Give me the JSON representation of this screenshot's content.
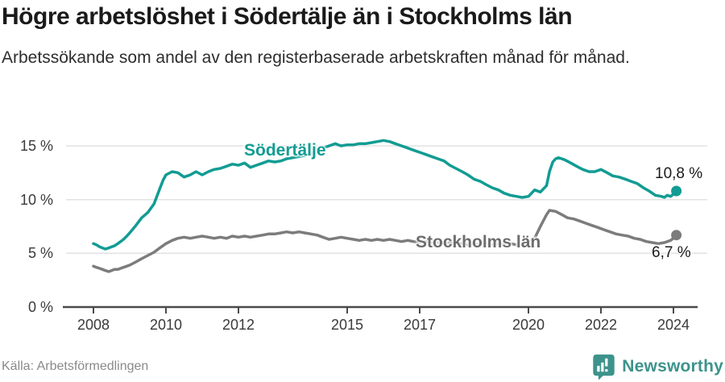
{
  "title": "Högre arbetslöshet i Södertälje än i Stockholms län",
  "subtitle": "Arbetssökande som andel av den registerbaserade arbetskraften månad för månad.",
  "footer": {
    "source": "Källa: Arbetsförmedlingen",
    "brand": "Newsworthy",
    "logo_icon": "newsworthy-pin-barchart-icon"
  },
  "colors": {
    "background": "#ffffff",
    "title_text": "#1a1a1a",
    "subtitle_text": "#2e2e2e",
    "axis_text": "#3a3a3a",
    "grid_line": "#e2e2e2",
    "axis_line": "#4a4a4a",
    "series_sodertalje": "#129c93",
    "series_stockholms_lan": "#7c7c7c",
    "stockholms_label_text": "#6d6d6d",
    "end_label_text": "#1a1a1a",
    "source_text": "#8a8a8a",
    "brand_teal": "#3d938b"
  },
  "chart_data": {
    "type": "line",
    "title": "Högre arbetslöshet i Södertälje än i Stockholms län",
    "subtitle": "Arbetssökande som andel av den registerbaserade arbetskraften månad för månad.",
    "unit": "%",
    "grid": "horizontal",
    "legend_position": "inline-labels",
    "x_axis": {
      "ticks": [
        2008,
        2010,
        2012,
        2015,
        2017,
        2020,
        2022,
        2024
      ],
      "tick_labels": [
        "2008",
        "2010",
        "2012",
        "2015",
        "2017",
        "2020",
        "2022",
        "2024"
      ],
      "range": [
        2008.0,
        2024.7
      ]
    },
    "y_axis": {
      "ticks": [
        0,
        5,
        10,
        15
      ],
      "tick_labels": [
        "0 %",
        "5 %",
        "10 %",
        "15 %"
      ],
      "range": [
        0,
        16.9
      ]
    },
    "series": [
      {
        "name": "Södertälje",
        "color": "#129c93",
        "end_value": 10.8,
        "end_label": "10,8 %",
        "points": [
          [
            2008.0,
            5.9
          ],
          [
            2008.08,
            5.8
          ],
          [
            2008.17,
            5.6
          ],
          [
            2008.25,
            5.5
          ],
          [
            2008.33,
            5.4
          ],
          [
            2008.42,
            5.5
          ],
          [
            2008.5,
            5.6
          ],
          [
            2008.58,
            5.7
          ],
          [
            2008.67,
            5.9
          ],
          [
            2008.75,
            6.1
          ],
          [
            2008.83,
            6.3
          ],
          [
            2008.92,
            6.6
          ],
          [
            2009.0,
            6.9
          ],
          [
            2009.17,
            7.6
          ],
          [
            2009.33,
            8.3
          ],
          [
            2009.5,
            8.8
          ],
          [
            2009.67,
            9.6
          ],
          [
            2009.83,
            11.0
          ],
          [
            2009.92,
            11.8
          ],
          [
            2010.0,
            12.3
          ],
          [
            2010.17,
            12.6
          ],
          [
            2010.33,
            12.5
          ],
          [
            2010.5,
            12.1
          ],
          [
            2010.67,
            12.3
          ],
          [
            2010.83,
            12.6
          ],
          [
            2011.0,
            12.3
          ],
          [
            2011.17,
            12.6
          ],
          [
            2011.33,
            12.8
          ],
          [
            2011.5,
            12.9
          ],
          [
            2011.67,
            13.1
          ],
          [
            2011.83,
            13.3
          ],
          [
            2012.0,
            13.2
          ],
          [
            2012.17,
            13.4
          ],
          [
            2012.33,
            13.0
          ],
          [
            2012.5,
            13.2
          ],
          [
            2012.67,
            13.4
          ],
          [
            2012.83,
            13.6
          ],
          [
            2013.0,
            13.5
          ],
          [
            2013.17,
            13.6
          ],
          [
            2013.33,
            13.8
          ],
          [
            2013.5,
            13.9
          ],
          [
            2013.67,
            14.0
          ],
          [
            2013.83,
            14.1
          ],
          [
            2014.0,
            14.3
          ],
          [
            2014.17,
            14.5
          ],
          [
            2014.33,
            14.8
          ],
          [
            2014.5,
            15.0
          ],
          [
            2014.67,
            15.2
          ],
          [
            2014.83,
            15.0
          ],
          [
            2015.0,
            15.1
          ],
          [
            2015.17,
            15.1
          ],
          [
            2015.33,
            15.2
          ],
          [
            2015.5,
            15.2
          ],
          [
            2015.67,
            15.3
          ],
          [
            2015.83,
            15.4
          ],
          [
            2016.0,
            15.5
          ],
          [
            2016.17,
            15.4
          ],
          [
            2016.33,
            15.2
          ],
          [
            2016.5,
            15.0
          ],
          [
            2016.67,
            14.8
          ],
          [
            2016.83,
            14.6
          ],
          [
            2017.0,
            14.4
          ],
          [
            2017.17,
            14.2
          ],
          [
            2017.33,
            14.0
          ],
          [
            2017.5,
            13.8
          ],
          [
            2017.67,
            13.6
          ],
          [
            2017.83,
            13.2
          ],
          [
            2018.0,
            12.9
          ],
          [
            2018.17,
            12.6
          ],
          [
            2018.33,
            12.3
          ],
          [
            2018.5,
            11.9
          ],
          [
            2018.67,
            11.7
          ],
          [
            2018.83,
            11.4
          ],
          [
            2019.0,
            11.1
          ],
          [
            2019.17,
            10.9
          ],
          [
            2019.33,
            10.6
          ],
          [
            2019.5,
            10.4
          ],
          [
            2019.67,
            10.3
          ],
          [
            2019.83,
            10.2
          ],
          [
            2020.0,
            10.3
          ],
          [
            2020.17,
            10.9
          ],
          [
            2020.33,
            10.7
          ],
          [
            2020.5,
            11.3
          ],
          [
            2020.58,
            12.6
          ],
          [
            2020.67,
            13.5
          ],
          [
            2020.75,
            13.8
          ],
          [
            2020.83,
            13.9
          ],
          [
            2020.92,
            13.8
          ],
          [
            2021.0,
            13.7
          ],
          [
            2021.17,
            13.4
          ],
          [
            2021.33,
            13.1
          ],
          [
            2021.5,
            12.8
          ],
          [
            2021.67,
            12.6
          ],
          [
            2021.83,
            12.6
          ],
          [
            2022.0,
            12.8
          ],
          [
            2022.17,
            12.5
          ],
          [
            2022.33,
            12.2
          ],
          [
            2022.5,
            12.1
          ],
          [
            2022.67,
            11.9
          ],
          [
            2022.83,
            11.7
          ],
          [
            2023.0,
            11.5
          ],
          [
            2023.17,
            11.1
          ],
          [
            2023.33,
            10.8
          ],
          [
            2023.5,
            10.4
          ],
          [
            2023.67,
            10.3
          ],
          [
            2023.75,
            10.2
          ],
          [
            2023.83,
            10.4
          ],
          [
            2023.92,
            10.3
          ],
          [
            2024.0,
            10.5
          ],
          [
            2024.08,
            10.8
          ]
        ]
      },
      {
        "name": "Stockholms län",
        "color": "#7c7c7c",
        "end_value": 6.7,
        "end_label": "6,7 %",
        "points": [
          [
            2008.0,
            3.8
          ],
          [
            2008.08,
            3.7
          ],
          [
            2008.17,
            3.6
          ],
          [
            2008.25,
            3.5
          ],
          [
            2008.33,
            3.4
          ],
          [
            2008.42,
            3.3
          ],
          [
            2008.5,
            3.4
          ],
          [
            2008.58,
            3.5
          ],
          [
            2008.67,
            3.5
          ],
          [
            2008.75,
            3.6
          ],
          [
            2008.83,
            3.7
          ],
          [
            2008.92,
            3.8
          ],
          [
            2009.0,
            3.9
          ],
          [
            2009.17,
            4.2
          ],
          [
            2009.33,
            4.5
          ],
          [
            2009.5,
            4.8
          ],
          [
            2009.67,
            5.1
          ],
          [
            2009.83,
            5.5
          ],
          [
            2010.0,
            5.9
          ],
          [
            2010.17,
            6.2
          ],
          [
            2010.33,
            6.4
          ],
          [
            2010.5,
            6.5
          ],
          [
            2010.67,
            6.4
          ],
          [
            2010.83,
            6.5
          ],
          [
            2011.0,
            6.6
          ],
          [
            2011.17,
            6.5
          ],
          [
            2011.33,
            6.4
          ],
          [
            2011.5,
            6.5
          ],
          [
            2011.67,
            6.4
          ],
          [
            2011.83,
            6.6
          ],
          [
            2012.0,
            6.5
          ],
          [
            2012.17,
            6.6
          ],
          [
            2012.33,
            6.5
          ],
          [
            2012.5,
            6.6
          ],
          [
            2012.67,
            6.7
          ],
          [
            2012.83,
            6.8
          ],
          [
            2013.0,
            6.8
          ],
          [
            2013.17,
            6.9
          ],
          [
            2013.33,
            7.0
          ],
          [
            2013.5,
            6.9
          ],
          [
            2013.67,
            7.0
          ],
          [
            2013.83,
            6.9
          ],
          [
            2014.0,
            6.8
          ],
          [
            2014.17,
            6.7
          ],
          [
            2014.33,
            6.5
          ],
          [
            2014.5,
            6.3
          ],
          [
            2014.67,
            6.4
          ],
          [
            2014.83,
            6.5
          ],
          [
            2015.0,
            6.4
          ],
          [
            2015.17,
            6.3
          ],
          [
            2015.33,
            6.2
          ],
          [
            2015.5,
            6.3
          ],
          [
            2015.67,
            6.2
          ],
          [
            2015.83,
            6.3
          ],
          [
            2016.0,
            6.2
          ],
          [
            2016.17,
            6.3
          ],
          [
            2016.33,
            6.2
          ],
          [
            2016.5,
            6.1
          ],
          [
            2016.67,
            6.2
          ],
          [
            2016.83,
            6.1
          ],
          [
            2017.0,
            6.0
          ],
          [
            2017.17,
            6.1
          ],
          [
            2017.33,
            6.0
          ],
          [
            2017.5,
            6.0
          ],
          [
            2017.67,
            5.9
          ],
          [
            2017.83,
            6.0
          ],
          [
            2018.0,
            5.9
          ],
          [
            2018.17,
            5.9
          ],
          [
            2018.33,
            5.8
          ],
          [
            2018.5,
            5.9
          ],
          [
            2018.67,
            5.8
          ],
          [
            2018.83,
            5.9
          ],
          [
            2019.0,
            5.8
          ],
          [
            2019.17,
            5.9
          ],
          [
            2019.33,
            5.8
          ],
          [
            2019.5,
            5.9
          ],
          [
            2019.67,
            5.8
          ],
          [
            2019.83,
            5.9
          ],
          [
            2020.0,
            6.0
          ],
          [
            2020.17,
            6.4
          ],
          [
            2020.33,
            7.5
          ],
          [
            2020.5,
            8.6
          ],
          [
            2020.58,
            9.0
          ],
          [
            2020.75,
            8.9
          ],
          [
            2020.92,
            8.6
          ],
          [
            2021.08,
            8.3
          ],
          [
            2021.25,
            8.2
          ],
          [
            2021.42,
            8.0
          ],
          [
            2021.58,
            7.8
          ],
          [
            2021.75,
            7.6
          ],
          [
            2021.92,
            7.4
          ],
          [
            2022.08,
            7.2
          ],
          [
            2022.25,
            7.0
          ],
          [
            2022.42,
            6.8
          ],
          [
            2022.58,
            6.7
          ],
          [
            2022.75,
            6.6
          ],
          [
            2022.92,
            6.4
          ],
          [
            2023.08,
            6.3
          ],
          [
            2023.25,
            6.1
          ],
          [
            2023.42,
            6.0
          ],
          [
            2023.58,
            5.9
          ],
          [
            2023.75,
            6.0
          ],
          [
            2023.92,
            6.2
          ],
          [
            2024.0,
            6.4
          ],
          [
            2024.08,
            6.7
          ]
        ]
      }
    ]
  }
}
